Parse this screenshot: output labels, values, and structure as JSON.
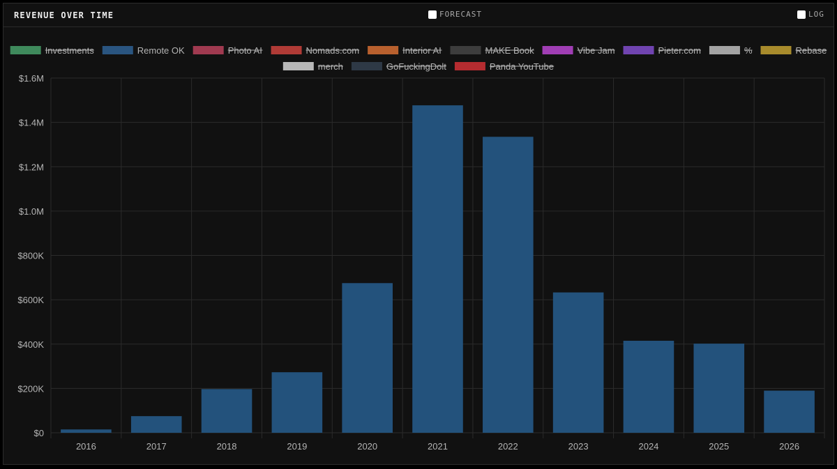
{
  "panel": {
    "title": "REVENUE OVER TIME",
    "forecast_label": "FORECAST",
    "forecast_checked": false,
    "log_label": "LOG",
    "log_checked": false
  },
  "colors": {
    "background": "#111111",
    "grid": "#2b2b2b",
    "tick_text": "#b4b4b4",
    "bar": "#23527c"
  },
  "chart_data": {
    "type": "bar",
    "stacked": true,
    "categories": [
      "2016",
      "2017",
      "2018",
      "2019",
      "2020",
      "2021",
      "2022",
      "2023",
      "2024",
      "2025",
      "2026"
    ],
    "ylim": [
      0,
      1600000
    ],
    "yticks": [
      {
        "value": 0,
        "label": "$0"
      },
      {
        "value": 200000,
        "label": "$200K"
      },
      {
        "value": 400000,
        "label": "$400K"
      },
      {
        "value": 600000,
        "label": "$600K"
      },
      {
        "value": 800000,
        "label": "$800K"
      },
      {
        "value": 1000000,
        "label": "$1.0M"
      },
      {
        "value": 1200000,
        "label": "$1.2M"
      },
      {
        "value": 1400000,
        "label": "$1.4M"
      },
      {
        "value": 1600000,
        "label": "$1.6M"
      }
    ],
    "grid": true,
    "legend_position": "top",
    "series": [
      {
        "name": "Investments",
        "color": "#3f8a5c",
        "hidden": true
      },
      {
        "name": "Remote OK",
        "color": "#2a5580",
        "hidden": false,
        "values": [
          15000,
          75000,
          197000,
          273000,
          675000,
          1477000,
          1335000,
          633000,
          415000,
          402000,
          190000
        ]
      },
      {
        "name": "Photo AI",
        "color": "#a03a50",
        "hidden": true
      },
      {
        "name": "Nomads.com",
        "color": "#b03b36",
        "hidden": true
      },
      {
        "name": "Interior AI",
        "color": "#b8602e",
        "hidden": true
      },
      {
        "name": "MAKE Book",
        "color": "#3d3d3d",
        "hidden": true
      },
      {
        "name": "Vibe Jam",
        "color": "#a03eb4",
        "hidden": true
      },
      {
        "name": "Pieter.com",
        "color": "#7044b0",
        "hidden": true
      },
      {
        "name": "%",
        "color": "#a3a3a3",
        "hidden": true
      },
      {
        "name": "Rebase",
        "color": "#a88b2c",
        "hidden": true
      },
      {
        "name": "merch",
        "color": "#b8b8b8",
        "hidden": true
      },
      {
        "name": "GoFuckingDolt",
        "color": "#2e3946",
        "hidden": true
      },
      {
        "name": "Panda YouTube",
        "color": "#b52c30",
        "hidden": true
      }
    ]
  }
}
